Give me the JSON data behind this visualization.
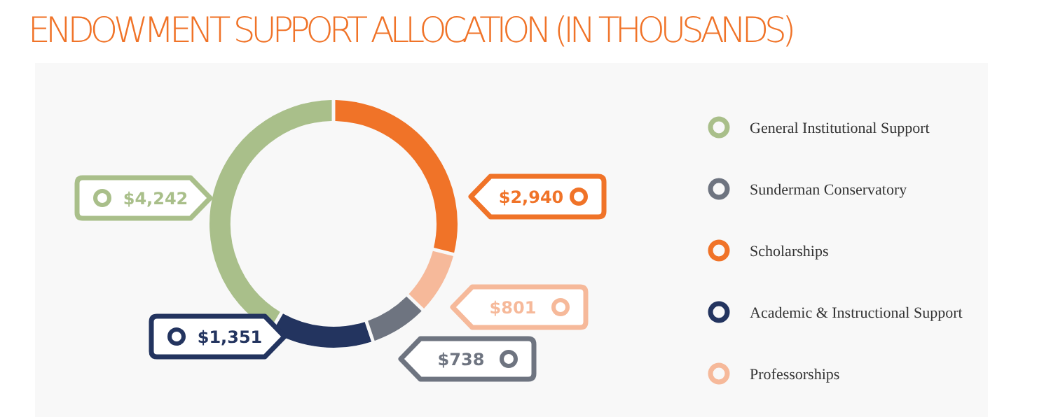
{
  "chart_data": {
    "type": "donut",
    "title": "ENDOWMENT SUPPORT ALLOCATION (IN THOUSANDS)",
    "categories": [
      "Scholarships",
      "Professorships",
      "Sunderman Conservatory",
      "Academic & Instructional Support",
      "General Institutional Support"
    ],
    "values": [
      2940,
      801,
      738,
      1351,
      4242
    ],
    "colors": [
      "#f07328",
      "#f6b99a",
      "#6e7480",
      "#23345f",
      "#a9bf8a"
    ],
    "value_labels": [
      "$2,940",
      "$801",
      "$738",
      "$1,351",
      "$4,242"
    ],
    "legend": "right"
  }
}
